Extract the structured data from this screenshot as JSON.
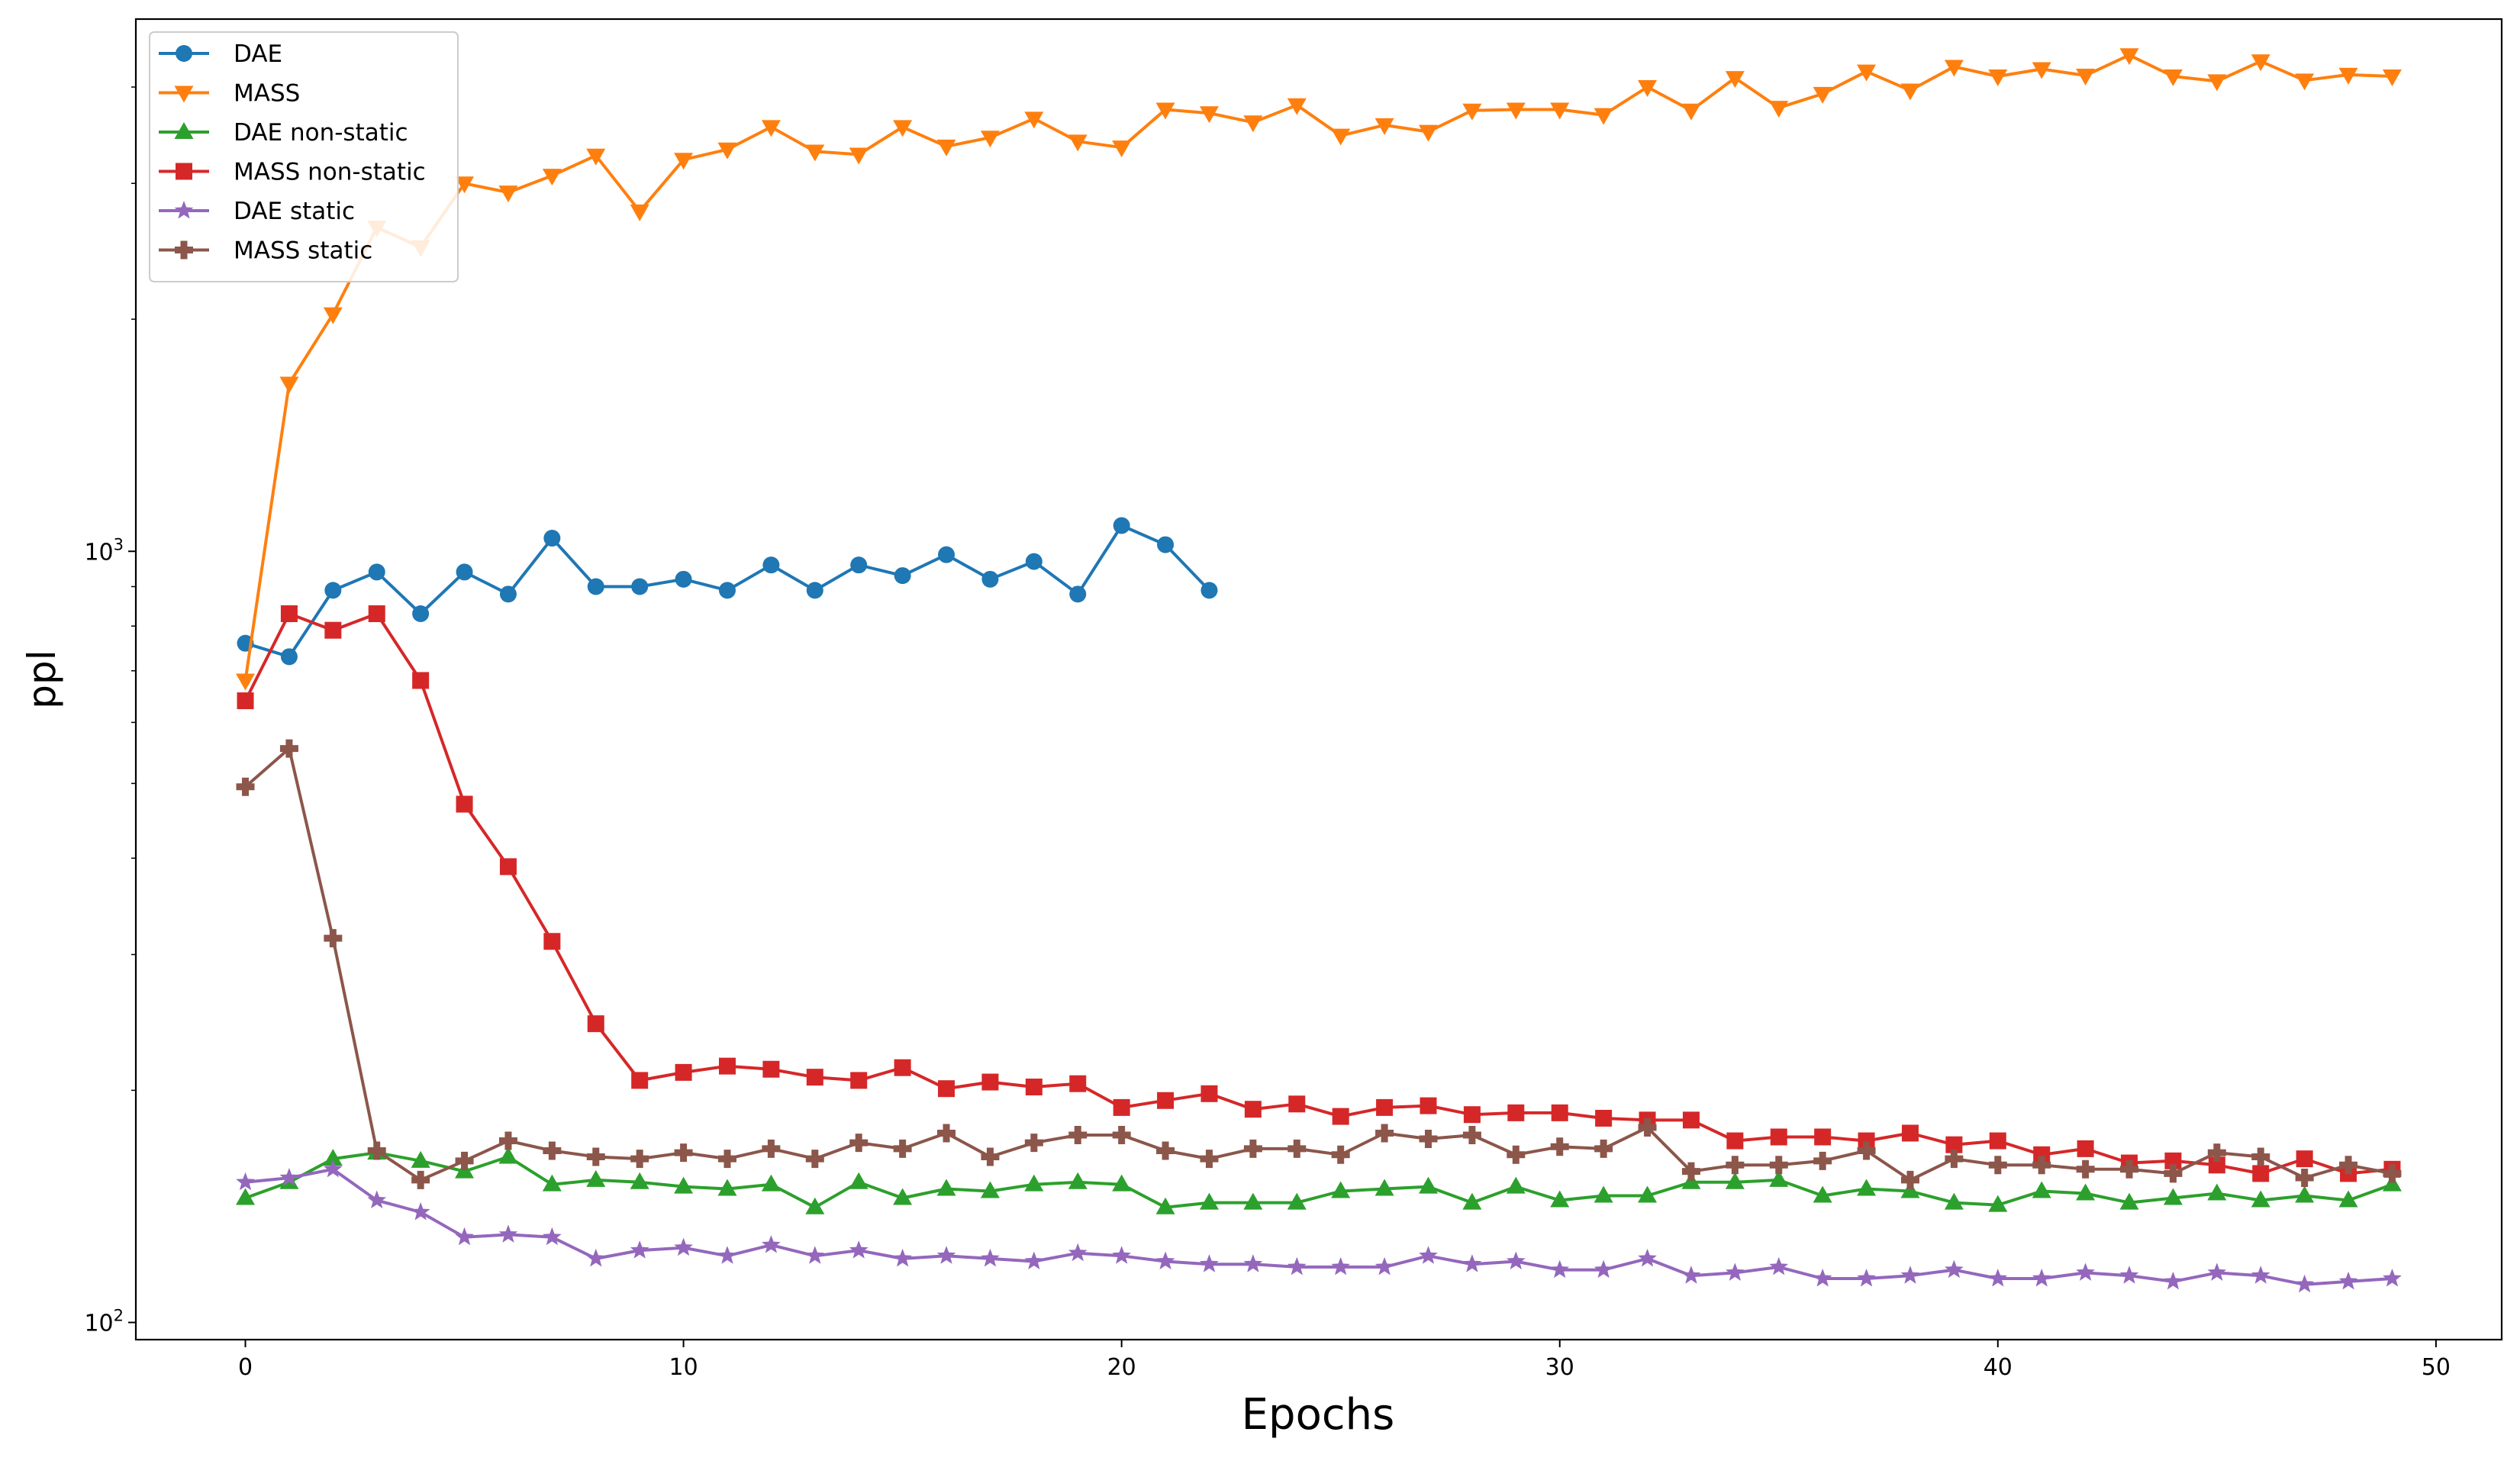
{
  "chart_data": {
    "type": "line",
    "title": "",
    "xlabel": "Epochs",
    "ylabel": "ppl",
    "xlim": [
      -2.5,
      51.5
    ],
    "ylim": [
      95,
      4900
    ],
    "yscale": "log",
    "xticks": [
      0,
      10,
      20,
      30,
      40,
      50
    ],
    "xtick_labels": [
      "0",
      "10",
      "20",
      "30",
      "40",
      "50"
    ],
    "yticks": [
      100,
      1000
    ],
    "ytick_labels": [
      {
        "base": "10",
        "exp": "2"
      },
      {
        "base": "10",
        "exp": "3"
      }
    ],
    "grid": false,
    "legend_position": "top-left",
    "series": [
      {
        "name": "DAE",
        "color": "#1f77b4",
        "marker": "circle",
        "x": [
          0,
          1,
          2,
          3,
          4,
          5,
          6,
          7,
          8,
          9,
          10,
          11,
          12,
          13,
          14,
          15,
          16,
          17,
          18,
          19,
          20,
          21,
          22
        ],
        "values": [
          760,
          730,
          890,
          940,
          830,
          940,
          880,
          1040,
          900,
          900,
          920,
          890,
          960,
          890,
          960,
          930,
          990,
          920,
          970,
          880,
          1080,
          1020,
          890
        ]
      },
      {
        "name": "MASS",
        "color": "#ff7f0e",
        "marker": "triangle-down",
        "x": [
          0,
          1,
          2,
          3,
          4,
          5,
          6,
          7,
          8,
          9,
          10,
          11,
          12,
          13,
          14,
          15,
          16,
          17,
          18,
          19,
          20,
          21,
          22,
          23,
          24,
          25,
          26,
          27,
          28,
          29,
          30,
          31,
          32,
          33,
          34,
          35,
          36,
          37,
          38,
          39,
          40,
          41,
          42,
          43,
          44,
          45,
          46,
          47,
          48,
          49
        ],
        "values": [
          680,
          1650,
          2030,
          2630,
          2480,
          3000,
          2920,
          3070,
          3260,
          2760,
          3220,
          3320,
          3550,
          3300,
          3270,
          3550,
          3350,
          3440,
          3640,
          3400,
          3340,
          3740,
          3700,
          3600,
          3790,
          3460,
          3570,
          3500,
          3730,
          3740,
          3740,
          3680,
          4000,
          3730,
          4110,
          3760,
          3920,
          4190,
          3960,
          4250,
          4130,
          4220,
          4140,
          4400,
          4130,
          4070,
          4320,
          4080,
          4150,
          4130
        ]
      },
      {
        "name": "DAE non-static",
        "color": "#2ca02c",
        "marker": "triangle-up",
        "x": [
          0,
          1,
          2,
          3,
          4,
          5,
          6,
          7,
          8,
          9,
          10,
          11,
          12,
          13,
          14,
          15,
          16,
          17,
          18,
          19,
          20,
          21,
          22,
          23,
          24,
          25,
          26,
          27,
          28,
          29,
          30,
          31,
          32,
          33,
          34,
          35,
          36,
          37,
          38,
          39,
          40,
          41,
          42,
          43,
          44,
          45,
          46,
          47,
          48,
          49
        ],
        "values": [
          145,
          152,
          163,
          166,
          162,
          157,
          164,
          151,
          153,
          152,
          150,
          149,
          151,
          141,
          152,
          145,
          149,
          148,
          151,
          152,
          151,
          141,
          143,
          143,
          143,
          148,
          149,
          150,
          143,
          150,
          144,
          146,
          146,
          152,
          152,
          153,
          146,
          149,
          148,
          143,
          142,
          148,
          147,
          143,
          145,
          147,
          144,
          146,
          144,
          151
        ]
      },
      {
        "name": "MASS non-static",
        "color": "#d62728",
        "marker": "square",
        "x": [
          0,
          1,
          2,
          3,
          4,
          5,
          6,
          7,
          8,
          9,
          10,
          11,
          12,
          13,
          14,
          15,
          16,
          17,
          18,
          19,
          20,
          21,
          22,
          23,
          24,
          25,
          26,
          27,
          28,
          29,
          30,
          31,
          32,
          33,
          34,
          35,
          36,
          37,
          38,
          39,
          40,
          41,
          42,
          43,
          44,
          45,
          46,
          47,
          48,
          49
        ],
        "values": [
          640,
          830,
          790,
          830,
          680,
          470,
          390,
          312,
          244,
          206,
          211,
          215,
          213,
          208,
          206,
          214,
          201,
          205,
          202,
          204,
          190,
          194,
          198,
          189,
          192,
          185,
          190,
          191,
          186,
          187,
          187,
          184,
          183,
          183,
          172,
          174,
          174,
          172,
          176,
          170,
          172,
          165,
          168,
          161,
          162,
          160,
          156,
          163,
          156,
          158
        ]
      },
      {
        "name": "DAE static",
        "color": "#9467bd",
        "marker": "star",
        "x": [
          0,
          1,
          2,
          3,
          4,
          5,
          6,
          7,
          8,
          9,
          10,
          11,
          12,
          13,
          14,
          15,
          16,
          17,
          18,
          19,
          20,
          21,
          22,
          23,
          24,
          25,
          26,
          27,
          28,
          29,
          30,
          31,
          32,
          33,
          34,
          35,
          36,
          37,
          38,
          39,
          40,
          41,
          42,
          43,
          44,
          45,
          46,
          47,
          48,
          49
        ],
        "values": [
          152,
          154,
          158,
          144,
          139,
          129,
          130,
          129,
          121,
          124,
          125,
          122,
          126,
          122,
          124,
          121,
          122,
          121,
          120,
          123,
          122,
          120,
          119,
          119,
          118,
          118,
          118,
          122,
          119,
          120,
          117,
          117,
          121,
          115,
          116,
          118,
          114,
          114,
          115,
          117,
          114,
          114,
          116,
          115,
          113,
          116,
          115,
          112,
          113,
          114
        ]
      },
      {
        "name": "MASS static",
        "color": "#8c564b",
        "marker": "plus",
        "x": [
          0,
          1,
          2,
          3,
          4,
          5,
          6,
          7,
          8,
          9,
          10,
          11,
          12,
          13,
          14,
          15,
          16,
          17,
          18,
          19,
          20,
          21,
          22,
          23,
          24,
          25,
          26,
          27,
          28,
          29,
          30,
          31,
          32,
          33,
          34,
          35,
          36,
          37,
          38,
          39,
          40,
          41,
          42,
          43,
          44,
          45,
          46,
          47,
          48,
          49
        ],
        "values": [
          495,
          555,
          315,
          167,
          153,
          162,
          172,
          167,
          164,
          163,
          166,
          163,
          168,
          163,
          171,
          168,
          176,
          164,
          171,
          175,
          175,
          167,
          163,
          168,
          168,
          165,
          176,
          173,
          175,
          165,
          169,
          168,
          179,
          157,
          160,
          160,
          162,
          167,
          153,
          163,
          160,
          160,
          158,
          158,
          156,
          166,
          164,
          154,
          160,
          156
        ]
      }
    ]
  }
}
